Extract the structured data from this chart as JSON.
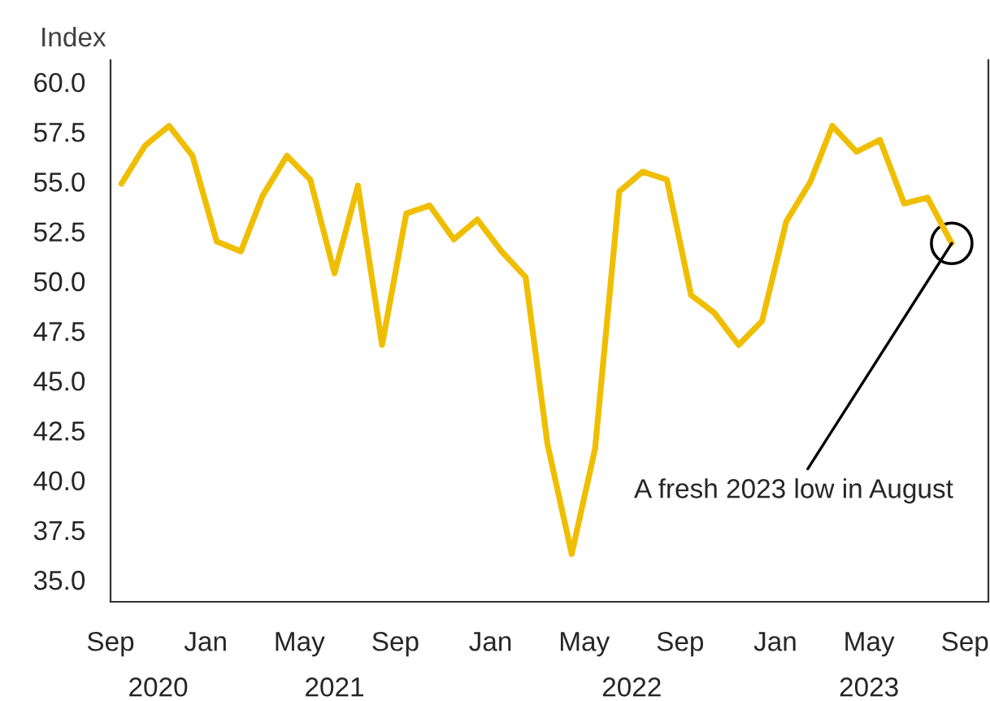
{
  "chart_data": {
    "type": "line",
    "ylabel": "Index",
    "x": [
      "2020-09-15",
      "2020-10-15",
      "2020-11-15",
      "2020-12-15",
      "2021-01-15",
      "2021-02-15",
      "2021-03-15",
      "2021-04-15",
      "2021-05-15",
      "2021-06-15",
      "2021-07-15",
      "2021-08-15",
      "2021-09-15",
      "2021-10-15",
      "2021-11-15",
      "2021-12-15",
      "2022-01-15",
      "2022-02-15",
      "2022-03-15",
      "2022-04-15",
      "2022-05-15",
      "2022-06-15",
      "2022-07-15",
      "2022-08-15",
      "2022-09-15",
      "2022-10-15",
      "2022-11-15",
      "2022-12-15",
      "2023-01-15",
      "2023-02-15",
      "2023-03-15",
      "2023-04-15",
      "2023-05-15",
      "2023-06-15",
      "2023-07-15",
      "2023-08-15"
    ],
    "series": [
      {
        "color": "#f0be00",
        "values": [
          54.9,
          56.8,
          57.8,
          56.3,
          52.0,
          51.5,
          54.3,
          56.3,
          55.1,
          50.4,
          54.8,
          46.8,
          53.4,
          53.8,
          52.1,
          53.1,
          51.5,
          50.2,
          41.8,
          36.3,
          41.6,
          54.5,
          55.5,
          55.1,
          49.3,
          48.4,
          46.8,
          48.0,
          53.0,
          55.0,
          57.8,
          56.5,
          57.1,
          53.9,
          54.2,
          51.9
        ]
      }
    ],
    "xlim": [
      "2020-09-01",
      "2023-10-01"
    ],
    "xticks": [
      {
        "value": "2020-09-01",
        "label": "Sep"
      },
      {
        "value": "2021-01-01",
        "label": "Jan"
      },
      {
        "value": "2021-05-01",
        "label": "May"
      },
      {
        "value": "2021-09-01",
        "label": "Sep"
      },
      {
        "value": "2022-01-01",
        "label": "Jan"
      },
      {
        "value": "2022-05-01",
        "label": "May"
      },
      {
        "value": "2022-09-01",
        "label": "Sep"
      },
      {
        "value": "2023-01-01",
        "label": "Jan"
      },
      {
        "value": "2023-05-01",
        "label": "May"
      },
      {
        "value": "2023-09-01",
        "label": "Sep"
      }
    ],
    "x2lim": [
      "2020-09-01",
      "2023-10-01"
    ],
    "x2ticks": [
      {
        "value": "2020-11-01",
        "label": "2020"
      },
      {
        "value": "2021-06-15",
        "label": "2021"
      },
      {
        "value": "2022-07-01",
        "label": "2022"
      },
      {
        "value": "2023-05-01",
        "label": "2023"
      }
    ],
    "ylim": [
      33.9,
      61.1
    ],
    "yticks": [
      {
        "value": 35,
        "label": "35.0"
      },
      {
        "value": 37.5,
        "label": "37.5"
      },
      {
        "value": 40,
        "label": "40.0"
      },
      {
        "value": 42.5,
        "label": "42.5"
      },
      {
        "value": 45,
        "label": "45.0"
      },
      {
        "value": 47.5,
        "label": "47.5"
      },
      {
        "value": 50,
        "label": "50.0"
      },
      {
        "value": 52.5,
        "label": "52.5"
      },
      {
        "value": 55,
        "label": "55.0"
      },
      {
        "value": 57.5,
        "label": "57.5"
      },
      {
        "value": 60,
        "label": "60.0"
      }
    ],
    "grid": false,
    "legend": false,
    "marker": "none",
    "line_style": "solid",
    "annotations": [
      {
        "text": "A fresh 2023 low in August",
        "x": "2023-08-15",
        "y": 51.9
      }
    ]
  }
}
